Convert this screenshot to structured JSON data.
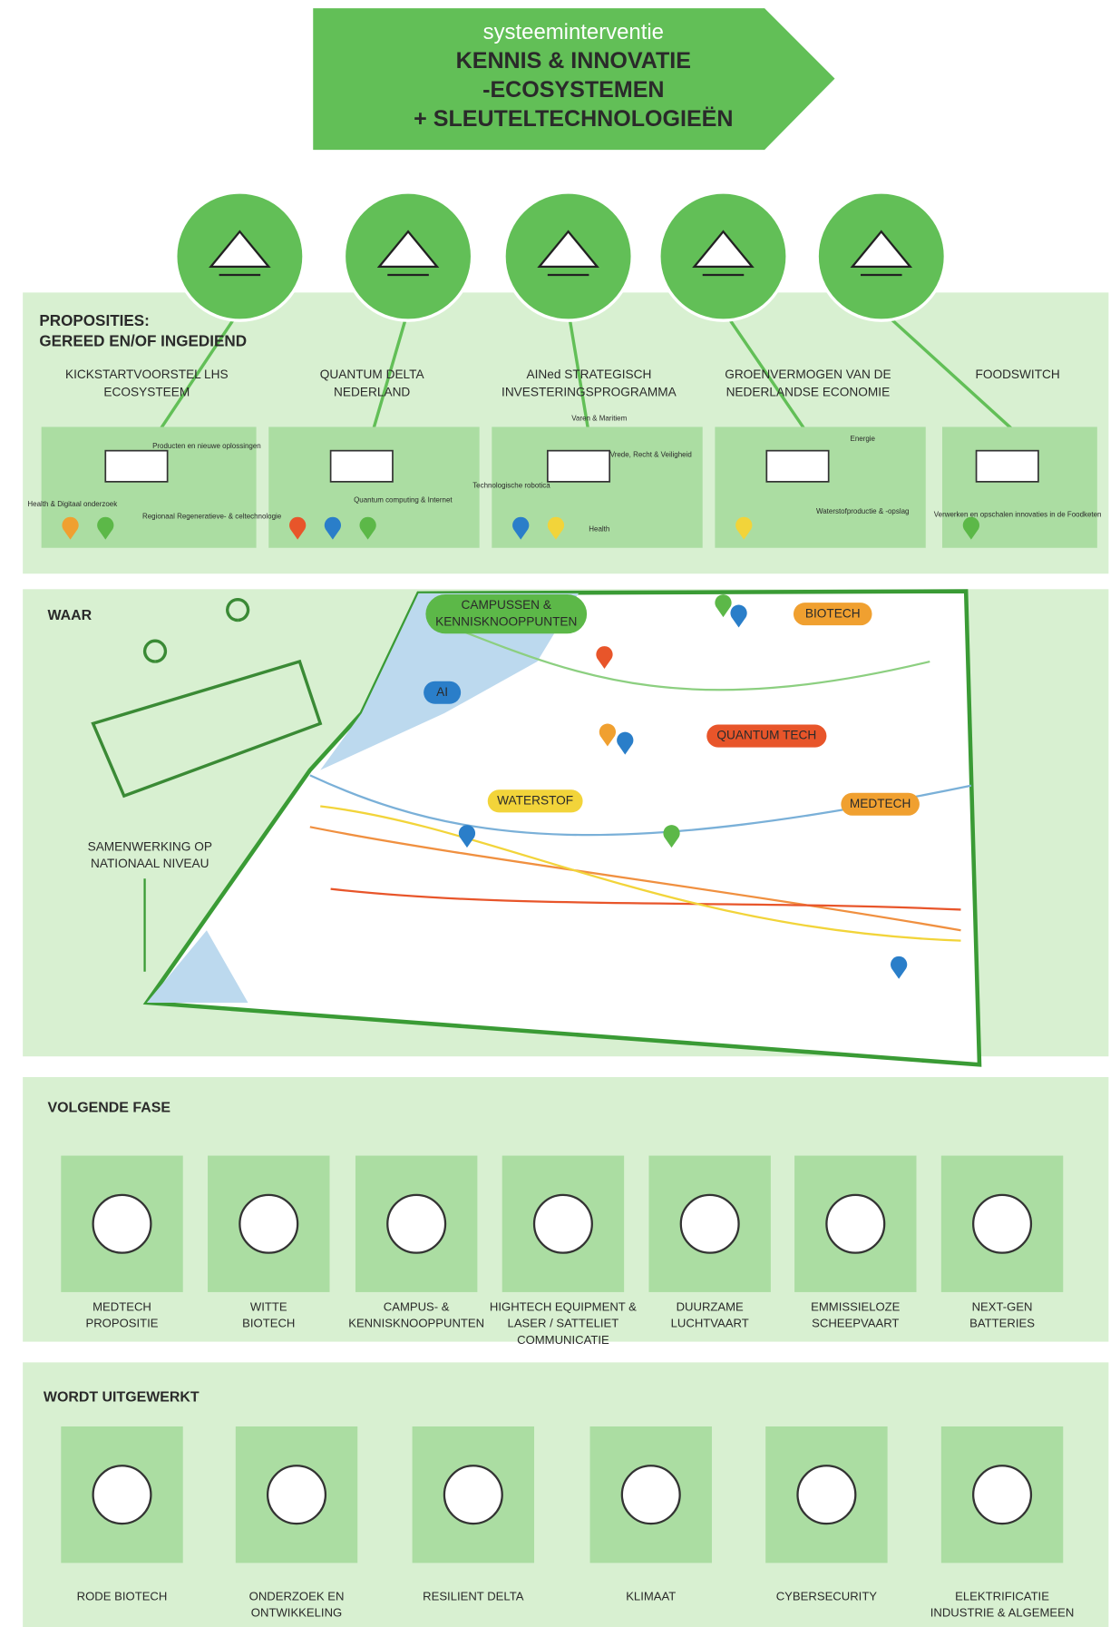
{
  "header": {
    "subtitle": "systeeminterventie",
    "title": [
      "KENNIS & INNOVATIE",
      "-ECOSYSTEMEN",
      "+ SLEUTELTECHNOLOGIEËN"
    ]
  },
  "propositions": {
    "title": [
      "PROPOSITIES:",
      "GEREED EN/OF INGEDIEND"
    ],
    "items": [
      {
        "title": [
          "KICKSTARTVOORSTEL LHS",
          "ECOSYSTEEM"
        ],
        "labels": [
          "Producten en nieuwe oplossingen",
          "Health & Digitaal onderzoek",
          "Regionaal Regeneratieve- & celtechnologie"
        ]
      },
      {
        "title": [
          "QUANTUM DELTA",
          "NEDERLAND"
        ],
        "labels": [
          "Quantum computing & Internet"
        ]
      },
      {
        "title": [
          "AINed STRATEGISCH",
          "INVESTERINGSPROGRAMMA"
        ],
        "labels": [
          "Varen & Maritiem",
          "Vrede, Recht & Veiligheid",
          "Technologische robotica",
          "Health"
        ]
      },
      {
        "title": [
          "GROENVERMOGEN VAN DE",
          "NEDERLANDSE ECONOMIE"
        ],
        "labels": [
          "Energie",
          "Waterstofproductie & -opslag"
        ]
      },
      {
        "title": [
          "FOODSWITCH"
        ],
        "labels": [
          "Verwerken en opschalen innovaties in de Foodketen"
        ]
      }
    ]
  },
  "map": {
    "title": "WAAR",
    "note": [
      "SAMENWERKING OP",
      "NATIONAAL NIVEAU"
    ],
    "labels": [
      [
        "CAMPUSSEN &",
        "KENNISKNOOPPUNTEN"
      ],
      [
        "BIOTECH"
      ],
      [
        "AI"
      ],
      [
        "QUANTUM TECH"
      ],
      [
        "WATERSTOF"
      ],
      [
        "MEDTECH"
      ]
    ]
  },
  "next_phase": {
    "title": "VOLGENDE FASE",
    "items": [
      [
        "MEDTECH",
        "PROPOSITIE"
      ],
      [
        "WITTE",
        "BIOTECH"
      ],
      [
        "CAMPUS- &",
        "KENNISKNOOPPUNTEN"
      ],
      [
        "HIGHTECH EQUIPMENT &",
        "LASER / SATTELIET",
        "COMMUNICATIE"
      ],
      [
        "DUURZAME",
        "LUCHTVAART"
      ],
      [
        "EMMISSIELOZE",
        "SCHEEPVAART"
      ],
      [
        "NEXT-GEN",
        "BATTERIES"
      ]
    ]
  },
  "in_progress": {
    "title": "WORDT UITGEWERKT",
    "items": [
      [
        "RODE BIOTECH"
      ],
      [
        "ONDERZOEK EN",
        "ONTWIKKELING"
      ],
      [
        "RESILIENT DELTA"
      ],
      [
        "KLIMAAT"
      ],
      [
        "CYBERSECURITY"
      ],
      [
        "ELEKTRIFICATIE",
        "INDUSTRIE & ALGEMEEN"
      ]
    ]
  }
}
